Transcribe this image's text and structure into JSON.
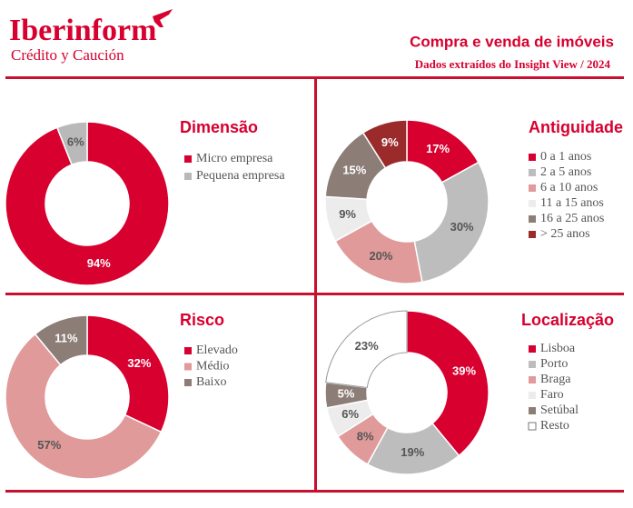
{
  "header": {
    "logo": "Iberinform",
    "tagline": "Crédito y Caución",
    "title": "Compra e venda de imóveis",
    "subtitle": "Dados extraídos do Insight View / 2024"
  },
  "chart_data": [
    {
      "type": "pie",
      "title": "Dimensão",
      "categories": [
        "Micro empresa",
        "Pequena empresa"
      ],
      "values": [
        94,
        6
      ],
      "value_labels": [
        "94%",
        "6%"
      ],
      "colors": [
        "#d7002f",
        "#b9b9b9"
      ]
    },
    {
      "type": "pie",
      "title": "Antiguidade",
      "categories": [
        "0 a 1 anos",
        "2 a 5 anos",
        "6 a 10 anos",
        "11 a 15 anos",
        "16 a 25 anos",
        "> 25 anos"
      ],
      "values": [
        17,
        30,
        20,
        9,
        15,
        9
      ],
      "value_labels": [
        "17%",
        "30%",
        "20%",
        "9%",
        "15%",
        "9%"
      ],
      "colors": [
        "#d7002f",
        "#bdbdbd",
        "#e09a9a",
        "#ececec",
        "#8c7d77",
        "#9b2b2b"
      ]
    },
    {
      "type": "pie",
      "title": "Risco",
      "categories": [
        "Elevado",
        "Médio",
        "Baixo"
      ],
      "values": [
        32,
        57,
        11
      ],
      "value_labels": [
        "32%",
        "57%",
        "11%"
      ],
      "colors": [
        "#d7002f",
        "#e09a9a",
        "#8c7d77"
      ]
    },
    {
      "type": "pie",
      "title": "Localização",
      "categories": [
        "Lisboa",
        "Porto",
        "Braga",
        "Faro",
        "Setúbal",
        "Resto"
      ],
      "values": [
        39,
        19,
        8,
        6,
        5,
        23
      ],
      "value_labels": [
        "39%",
        "19%",
        "8%",
        "6%",
        "5%",
        "23%"
      ],
      "colors": [
        "#d7002f",
        "#bdbdbd",
        "#e09a9a",
        "#ececec",
        "#8c7d77",
        "#ffffff"
      ]
    }
  ]
}
